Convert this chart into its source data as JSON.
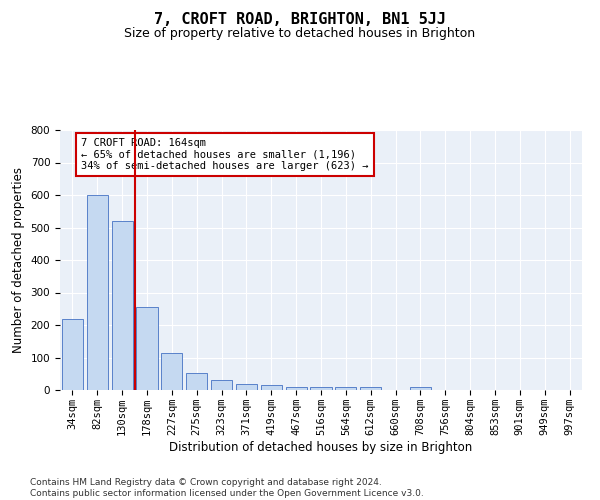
{
  "title": "7, CROFT ROAD, BRIGHTON, BN1 5JJ",
  "subtitle": "Size of property relative to detached houses in Brighton",
  "xlabel": "Distribution of detached houses by size in Brighton",
  "ylabel": "Number of detached properties",
  "bar_labels": [
    "34sqm",
    "82sqm",
    "130sqm",
    "178sqm",
    "227sqm",
    "275sqm",
    "323sqm",
    "371sqm",
    "419sqm",
    "467sqm",
    "516sqm",
    "564sqm",
    "612sqm",
    "660sqm",
    "708sqm",
    "756sqm",
    "804sqm",
    "853sqm",
    "901sqm",
    "949sqm",
    "997sqm"
  ],
  "bar_values": [
    217,
    600,
    520,
    255,
    113,
    52,
    30,
    20,
    15,
    10,
    9,
    9,
    9,
    0,
    9,
    0,
    0,
    0,
    0,
    0,
    0
  ],
  "bar_color": "#c5d9f1",
  "bar_edge_color": "#4472c4",
  "vline_x": 2.5,
  "vline_color": "#cc0000",
  "annotation_text": "7 CROFT ROAD: 164sqm\n← 65% of detached houses are smaller (1,196)\n34% of semi-detached houses are larger (623) →",
  "annotation_box_color": "#ffffff",
  "annotation_box_edge_color": "#cc0000",
  "ylim": [
    0,
    800
  ],
  "yticks": [
    0,
    100,
    200,
    300,
    400,
    500,
    600,
    700,
    800
  ],
  "footnote": "Contains HM Land Registry data © Crown copyright and database right 2024.\nContains public sector information licensed under the Open Government Licence v3.0.",
  "title_fontsize": 11,
  "subtitle_fontsize": 9,
  "axis_label_fontsize": 8.5,
  "tick_fontsize": 7.5,
  "annotation_fontsize": 7.5,
  "footnote_fontsize": 6.5,
  "background_color": "#eaf0f8"
}
